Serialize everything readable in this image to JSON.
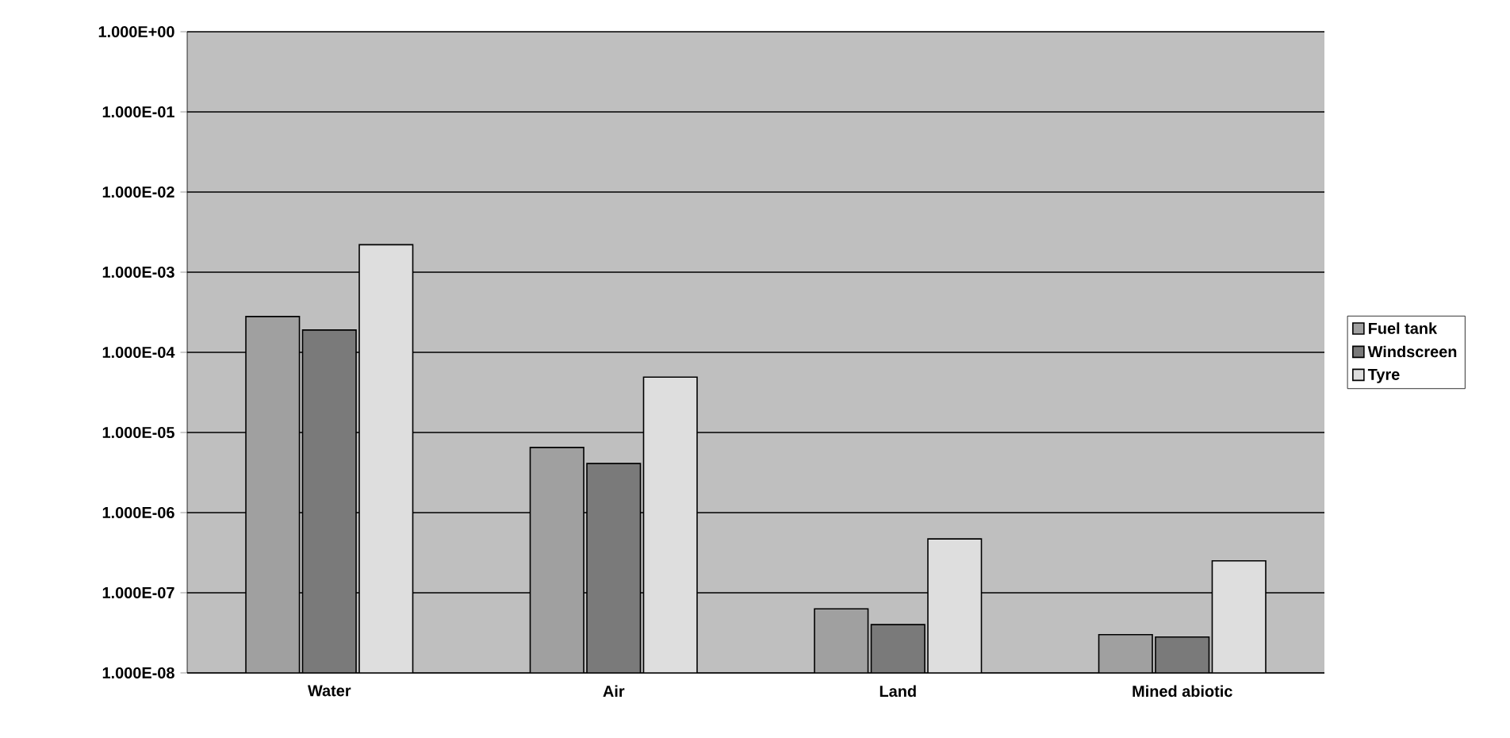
{
  "chart_data": {
    "type": "bar",
    "categories": [
      "Water",
      "Air",
      "Land",
      "Mined abiotic"
    ],
    "series": [
      {
        "name": "Fuel tank",
        "color": "#a0a0a0",
        "values": [
          0.00028,
          6.5e-06,
          6.3e-08,
          3e-08
        ]
      },
      {
        "name": "Windscreen",
        "color": "#7a7a7a",
        "values": [
          0.00019,
          4.1e-06,
          4e-08,
          2.8e-08
        ]
      },
      {
        "name": "Tyre",
        "color": "#dedede",
        "values": [
          0.0022,
          4.9e-05,
          4.7e-07,
          2.5e-07
        ]
      }
    ],
    "log": true,
    "ylim": [
      1e-08,
      1
    ],
    "yticks": [
      {
        "value": 1e-08,
        "label": "1.000E-08"
      },
      {
        "value": 1e-07,
        "label": "1.000E-07"
      },
      {
        "value": 1e-06,
        "label": "1.000E-06"
      },
      {
        "value": 1e-05,
        "label": "1.000E-05"
      },
      {
        "value": 0.0001,
        "label": "1.000E-04"
      },
      {
        "value": 0.001,
        "label": "1.000E-03"
      },
      {
        "value": 0.01,
        "label": "1.000E-02"
      },
      {
        "value": 0.1,
        "label": "1.000E-01"
      },
      {
        "value": 1,
        "label": "1.000E+00"
      }
    ],
    "grid": "y",
    "legend": "right"
  }
}
